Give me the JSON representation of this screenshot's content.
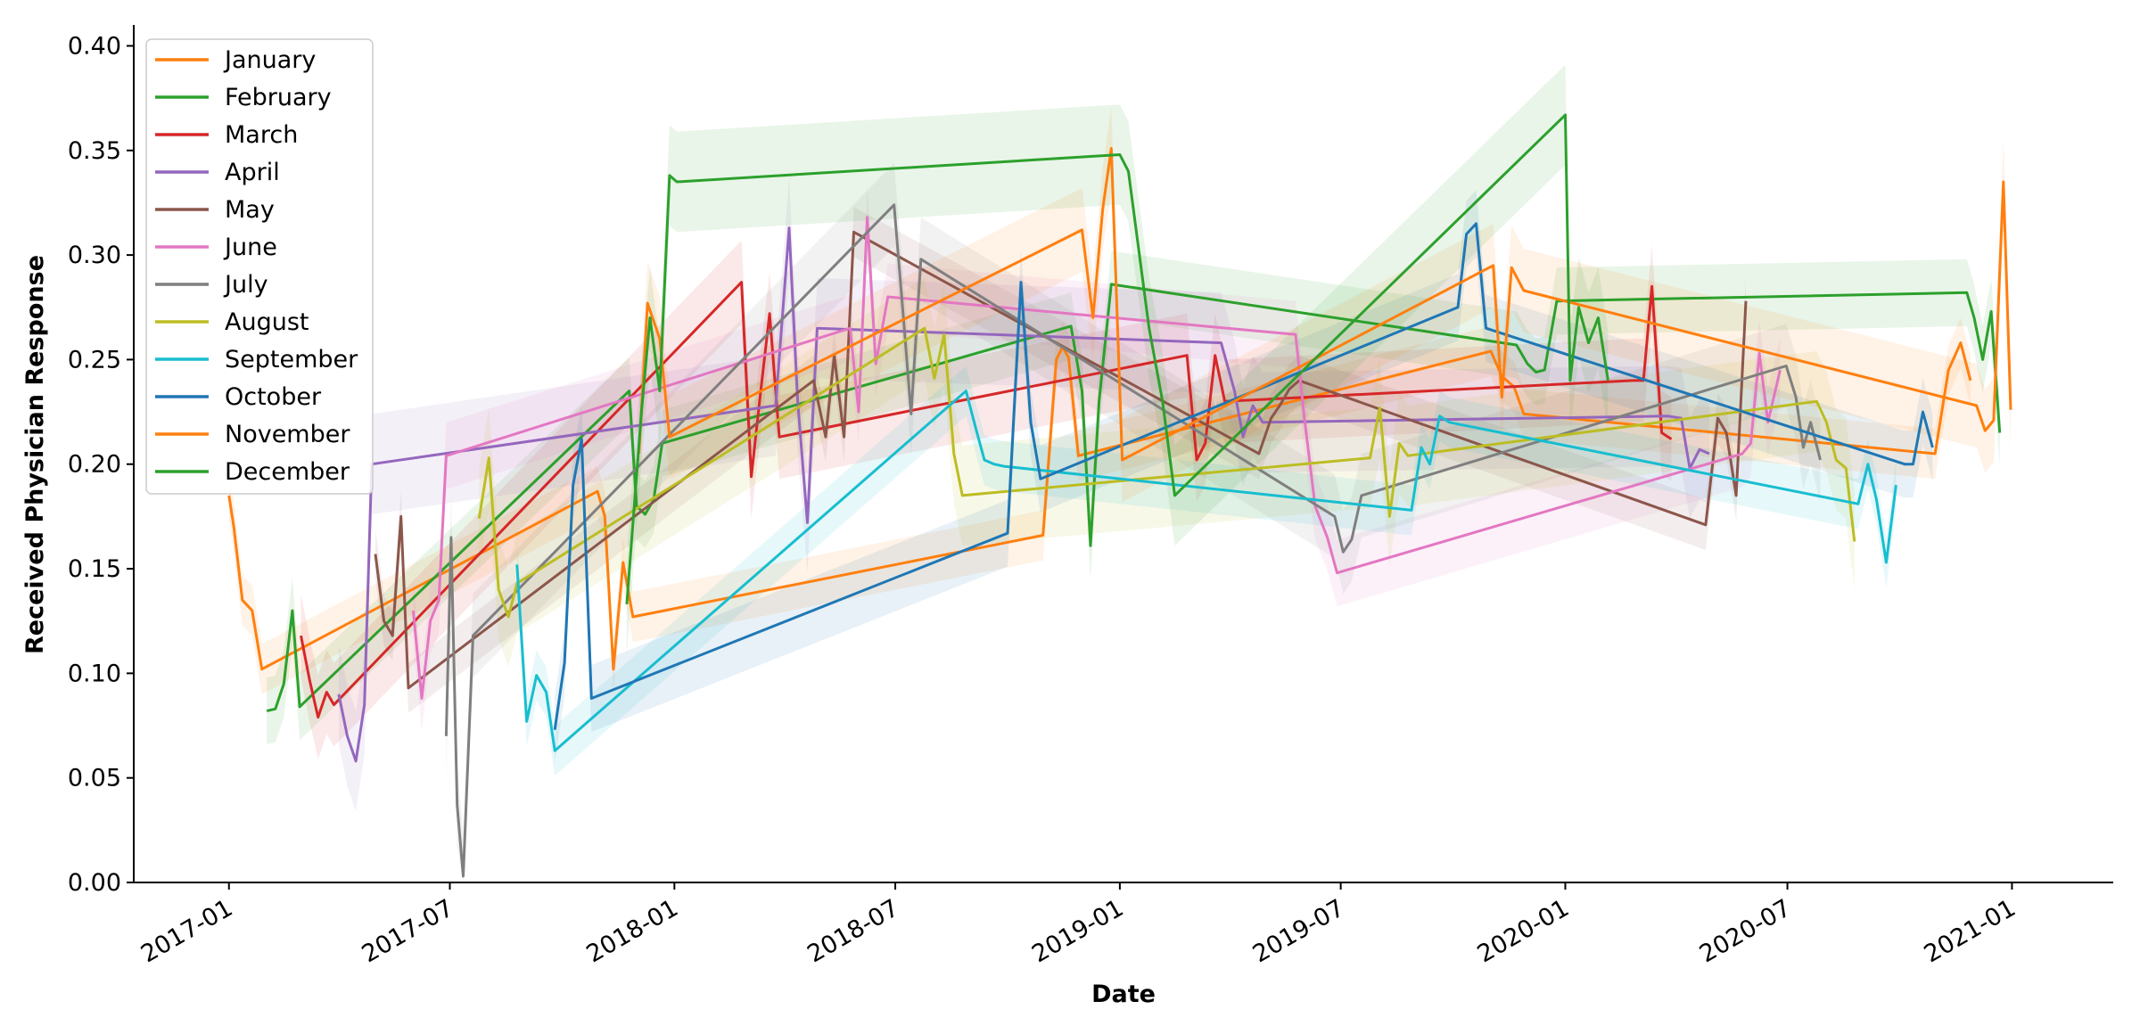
{
  "chart_data": {
    "type": "line",
    "title": "",
    "xlabel": "Date",
    "ylabel": "Received Physician Response",
    "xlim": [
      "2016-10-15",
      "2021-03-25"
    ],
    "ylim": [
      0,
      0.41
    ],
    "yticks": [
      0.0,
      0.05,
      0.1,
      0.15,
      0.2,
      0.25,
      0.3,
      0.35,
      0.4
    ],
    "ytick_labels": [
      "0.00",
      "0.05",
      "0.10",
      "0.15",
      "0.20",
      "0.25",
      "0.30",
      "0.35",
      "0.40"
    ],
    "xticks": [
      "2017-01-01",
      "2017-07-01",
      "2018-01-01",
      "2018-07-01",
      "2019-01-01",
      "2019-07-01",
      "2020-01-01",
      "2020-07-01",
      "2021-01-01"
    ],
    "xtick_labels": [
      "2017-01",
      "2017-07",
      "2018-01",
      "2018-07",
      "2019-01",
      "2019-07",
      "2020-01",
      "2020-07",
      "2021-01"
    ],
    "legend_position": "top-left",
    "confidence_band": true,
    "series": [
      {
        "name": "January",
        "color": "#ff7f0e",
        "points": [
          [
            "2017-01-01",
            0.185
          ],
          [
            "2017-01-05",
            0.17
          ],
          [
            "2017-01-12",
            0.135
          ],
          [
            "2017-01-20",
            0.13
          ],
          [
            "2017-01-28",
            0.102
          ],
          [
            "2017-10-30",
            0.187
          ],
          [
            "2017-11-05",
            0.175
          ],
          [
            "2017-11-12",
            0.102
          ],
          [
            "2017-11-20",
            0.153
          ],
          [
            "2017-11-28",
            0.127
          ],
          [
            "2018-10-30",
            0.166
          ],
          [
            "2018-11-10",
            0.25
          ],
          [
            "2018-11-15",
            0.256
          ],
          [
            "2018-11-20",
            0.251
          ],
          [
            "2018-11-28",
            0.204
          ],
          [
            "2019-11-01",
            0.254
          ],
          [
            "2019-11-10",
            0.242
          ],
          [
            "2019-11-20",
            0.237
          ],
          [
            "2019-11-28",
            0.224
          ],
          [
            "2020-10-30",
            0.205
          ],
          [
            "2020-11-10",
            0.245
          ],
          [
            "2020-11-20",
            0.258
          ],
          [
            "2020-11-28",
            0.24
          ]
        ]
      },
      {
        "name": "February",
        "color": "#2ca02c",
        "points": [
          [
            "2017-02-01",
            0.082
          ],
          [
            "2017-02-08",
            0.083
          ],
          [
            "2017-02-15",
            0.095
          ],
          [
            "2017-02-22",
            0.13
          ],
          [
            "2017-02-28",
            0.084
          ],
          [
            "2017-11-25",
            0.235
          ],
          [
            "2017-12-01",
            0.18
          ],
          [
            "2017-12-08",
            0.176
          ],
          [
            "2017-12-15",
            0.183
          ],
          [
            "2017-12-22",
            0.21
          ],
          [
            "2018-11-22",
            0.266
          ],
          [
            "2018-12-01",
            0.235
          ],
          [
            "2018-12-08",
            0.161
          ],
          [
            "2018-12-15",
            0.23
          ],
          [
            "2018-12-25",
            0.286
          ],
          [
            "2019-11-22",
            0.257
          ],
          [
            "2019-12-01",
            0.248
          ],
          [
            "2019-12-08",
            0.244
          ],
          [
            "2019-12-15",
            0.245
          ],
          [
            "2019-12-25",
            0.278
          ],
          [
            "2020-11-25",
            0.282
          ],
          [
            "2020-12-01",
            0.27
          ],
          [
            "2020-12-08",
            0.25
          ],
          [
            "2020-12-15",
            0.273
          ],
          [
            "2020-12-22",
            0.215
          ]
        ]
      },
      {
        "name": "March",
        "color": "#d62728",
        "points": [
          [
            "2017-03-01",
            0.118
          ],
          [
            "2017-03-08",
            0.097
          ],
          [
            "2017-03-15",
            0.079
          ],
          [
            "2017-03-22",
            0.091
          ],
          [
            "2017-03-28",
            0.085
          ],
          [
            "2018-02-25",
            0.287
          ],
          [
            "2018-03-05",
            0.194
          ],
          [
            "2018-03-12",
            0.231
          ],
          [
            "2018-03-20",
            0.272
          ],
          [
            "2018-03-28",
            0.213
          ],
          [
            "2019-02-25",
            0.252
          ],
          [
            "2019-03-05",
            0.202
          ],
          [
            "2019-03-12",
            0.21
          ],
          [
            "2019-03-20",
            0.252
          ],
          [
            "2019-03-28",
            0.23
          ],
          [
            "2020-02-25",
            0.24
          ],
          [
            "2020-03-05",
            0.24
          ],
          [
            "2020-03-12",
            0.285
          ],
          [
            "2020-03-20",
            0.215
          ],
          [
            "2020-03-28",
            0.212
          ]
        ]
      },
      {
        "name": "April",
        "color": "#9467bd",
        "points": [
          [
            "2017-04-01",
            0.09
          ],
          [
            "2017-04-08",
            0.07
          ],
          [
            "2017-04-15",
            0.058
          ],
          [
            "2017-04-22",
            0.085
          ],
          [
            "2017-04-28",
            0.2
          ],
          [
            "2018-03-25",
            0.228
          ],
          [
            "2018-04-05",
            0.313
          ],
          [
            "2018-04-12",
            0.23
          ],
          [
            "2018-04-20",
            0.172
          ],
          [
            "2018-04-28",
            0.265
          ],
          [
            "2019-03-25",
            0.258
          ],
          [
            "2019-04-05",
            0.235
          ],
          [
            "2019-04-12",
            0.213
          ],
          [
            "2019-04-20",
            0.228
          ],
          [
            "2019-04-28",
            0.22
          ],
          [
            "2020-03-25",
            0.223
          ],
          [
            "2020-04-05",
            0.222
          ],
          [
            "2020-04-12",
            0.198
          ],
          [
            "2020-04-20",
            0.207
          ],
          [
            "2020-04-28",
            0.205
          ]
        ]
      },
      {
        "name": "May",
        "color": "#8c564b",
        "points": [
          [
            "2017-05-01",
            0.157
          ],
          [
            "2017-05-08",
            0.125
          ],
          [
            "2017-05-15",
            0.118
          ],
          [
            "2017-05-22",
            0.175
          ],
          [
            "2017-05-28",
            0.093
          ],
          [
            "2018-04-25",
            0.24
          ],
          [
            "2018-05-05",
            0.213
          ],
          [
            "2018-05-12",
            0.252
          ],
          [
            "2018-05-20",
            0.213
          ],
          [
            "2018-05-28",
            0.311
          ],
          [
            "2019-04-25",
            0.205
          ],
          [
            "2019-05-05",
            0.222
          ],
          [
            "2019-05-12",
            0.228
          ],
          [
            "2019-05-20",
            0.236
          ],
          [
            "2019-05-28",
            0.24
          ],
          [
            "2020-04-25",
            0.171
          ],
          [
            "2020-05-05",
            0.222
          ],
          [
            "2020-05-12",
            0.215
          ],
          [
            "2020-05-20",
            0.185
          ],
          [
            "2020-05-28",
            0.278
          ]
        ]
      },
      {
        "name": "June",
        "color": "#e377c2",
        "points": [
          [
            "2017-06-01",
            0.13
          ],
          [
            "2017-06-08",
            0.088
          ],
          [
            "2017-06-15",
            0.125
          ],
          [
            "2017-06-22",
            0.135
          ],
          [
            "2017-06-28",
            0.204
          ],
          [
            "2018-05-25",
            0.265
          ],
          [
            "2018-06-01",
            0.225
          ],
          [
            "2018-06-08",
            0.318
          ],
          [
            "2018-06-15",
            0.248
          ],
          [
            "2018-06-25",
            0.28
          ],
          [
            "2019-05-25",
            0.262
          ],
          [
            "2019-06-01",
            0.223
          ],
          [
            "2019-06-10",
            0.18
          ],
          [
            "2019-06-20",
            0.165
          ],
          [
            "2019-06-28",
            0.148
          ],
          [
            "2020-05-25",
            0.205
          ],
          [
            "2020-06-01",
            0.21
          ],
          [
            "2020-06-08",
            0.253
          ],
          [
            "2020-06-15",
            0.22
          ],
          [
            "2020-06-25",
            0.245
          ]
        ]
      },
      {
        "name": "July",
        "color": "#7f7f7f",
        "points": [
          [
            "2017-06-28",
            0.07
          ],
          [
            "2017-07-02",
            0.165
          ],
          [
            "2017-07-07",
            0.037
          ],
          [
            "2017-07-12",
            0.003
          ],
          [
            "2017-07-20",
            0.118
          ],
          [
            "2018-06-30",
            0.324
          ],
          [
            "2018-07-08",
            0.268
          ],
          [
            "2018-07-14",
            0.224
          ],
          [
            "2018-07-22",
            0.298
          ],
          [
            "2019-06-26",
            0.175
          ],
          [
            "2019-07-03",
            0.158
          ],
          [
            "2019-07-10",
            0.164
          ],
          [
            "2019-07-18",
            0.185
          ],
          [
            "2020-06-30",
            0.247
          ],
          [
            "2020-07-08",
            0.232
          ],
          [
            "2020-07-14",
            0.208
          ],
          [
            "2020-07-20",
            0.22
          ],
          [
            "2020-07-28",
            0.202
          ]
        ]
      },
      {
        "name": "August",
        "color": "#bcbd22",
        "points": [
          [
            "2017-07-25",
            0.174
          ],
          [
            "2017-08-02",
            0.203
          ],
          [
            "2017-08-10",
            0.14
          ],
          [
            "2017-08-18",
            0.127
          ],
          [
            "2017-08-25",
            0.143
          ],
          [
            "2018-07-25",
            0.265
          ],
          [
            "2018-08-02",
            0.241
          ],
          [
            "2018-08-10",
            0.262
          ],
          [
            "2018-08-18",
            0.205
          ],
          [
            "2018-08-25",
            0.185
          ],
          [
            "2019-07-25",
            0.203
          ],
          [
            "2019-08-02",
            0.227
          ],
          [
            "2019-08-10",
            0.175
          ],
          [
            "2019-08-18",
            0.21
          ],
          [
            "2019-08-25",
            0.204
          ],
          [
            "2020-07-25",
            0.23
          ],
          [
            "2020-08-02",
            0.22
          ],
          [
            "2020-08-10",
            0.202
          ],
          [
            "2020-08-18",
            0.198
          ],
          [
            "2020-08-25",
            0.163
          ]
        ]
      },
      {
        "name": "September",
        "color": "#17becf",
        "points": [
          [
            "2017-08-25",
            0.152
          ],
          [
            "2017-09-02",
            0.077
          ],
          [
            "2017-09-10",
            0.099
          ],
          [
            "2017-09-18",
            0.091
          ],
          [
            "2017-09-25",
            0.063
          ],
          [
            "2018-08-28",
            0.235
          ],
          [
            "2018-09-05",
            0.217
          ],
          [
            "2018-09-12",
            0.202
          ],
          [
            "2018-09-20",
            0.2
          ],
          [
            "2018-09-28",
            0.199
          ],
          [
            "2019-08-28",
            0.178
          ],
          [
            "2019-09-05",
            0.208
          ],
          [
            "2019-09-12",
            0.2
          ],
          [
            "2019-09-20",
            0.223
          ],
          [
            "2019-09-28",
            0.22
          ],
          [
            "2020-08-28",
            0.181
          ],
          [
            "2020-09-05",
            0.2
          ],
          [
            "2020-09-12",
            0.183
          ],
          [
            "2020-09-20",
            0.153
          ],
          [
            "2020-09-28",
            0.19
          ]
        ]
      },
      {
        "name": "October",
        "color": "#1f77b4",
        "points": [
          [
            "2017-09-25",
            0.073
          ],
          [
            "2017-10-03",
            0.105
          ],
          [
            "2017-10-10",
            0.19
          ],
          [
            "2017-10-17",
            0.212
          ],
          [
            "2017-10-25",
            0.088
          ],
          [
            "2018-10-01",
            0.167
          ],
          [
            "2018-10-12",
            0.287
          ],
          [
            "2018-10-20",
            0.22
          ],
          [
            "2018-10-28",
            0.193
          ],
          [
            "2019-10-05",
            0.275
          ],
          [
            "2019-10-12",
            0.31
          ],
          [
            "2019-10-20",
            0.315
          ],
          [
            "2019-10-28",
            0.265
          ],
          [
            "2020-10-05",
            0.2
          ],
          [
            "2020-10-12",
            0.2
          ],
          [
            "2020-10-20",
            0.225
          ],
          [
            "2020-10-28",
            0.208
          ]
        ]
      },
      {
        "name": "November",
        "color": "#ff7f0e",
        "points": [
          [
            "2017-12-03",
            0.205
          ],
          [
            "2017-12-10",
            0.277
          ],
          [
            "2017-12-20",
            0.26
          ],
          [
            "2017-12-28",
            0.213
          ],
          [
            "2018-12-01",
            0.312
          ],
          [
            "2018-12-10",
            0.27
          ],
          [
            "2018-12-18",
            0.322
          ],
          [
            "2018-12-25",
            0.351
          ],
          [
            "2019-01-03",
            0.202
          ],
          [
            "2019-11-03",
            0.295
          ],
          [
            "2019-11-10",
            0.232
          ],
          [
            "2019-11-18",
            0.294
          ],
          [
            "2019-11-28",
            0.283
          ],
          [
            "2020-12-03",
            0.228
          ],
          [
            "2020-12-10",
            0.216
          ],
          [
            "2020-12-17",
            0.221
          ],
          [
            "2020-12-25",
            0.335
          ],
          [
            "2020-12-31",
            0.226
          ]
        ]
      },
      {
        "name": "December",
        "color": "#2ca02c",
        "points": [
          [
            "2017-11-23",
            0.133
          ],
          [
            "2017-12-05",
            0.225
          ],
          [
            "2017-12-12",
            0.27
          ],
          [
            "2017-12-20",
            0.235
          ],
          [
            "2017-12-28",
            0.338
          ],
          [
            "2018-01-03",
            0.335
          ],
          [
            "2019-01-01",
            0.348
          ],
          [
            "2019-01-08",
            0.34
          ],
          [
            "2019-01-25",
            0.265
          ],
          [
            "2019-02-05",
            0.23
          ],
          [
            "2019-02-15",
            0.185
          ],
          [
            "2020-01-01",
            0.367
          ],
          [
            "2020-01-05",
            0.24
          ],
          [
            "2020-01-12",
            0.275
          ],
          [
            "2020-01-20",
            0.258
          ],
          [
            "2020-01-28",
            0.27
          ],
          [
            "2020-02-05",
            0.24
          ]
        ]
      }
    ]
  }
}
